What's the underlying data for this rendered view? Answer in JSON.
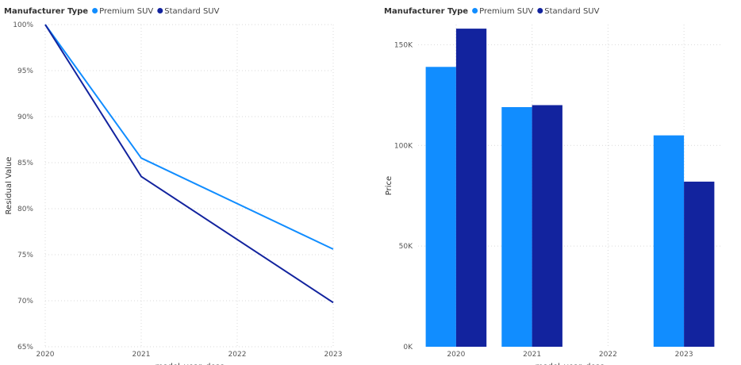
{
  "chart_data": [
    {
      "type": "line",
      "legend_title": "Manufacturer Type",
      "categories": [
        "2020",
        "2021",
        "2022",
        "2023"
      ],
      "series": [
        {
          "name": "Premium SUV",
          "color": "#118DFF",
          "x": [
            "2020",
            "2021",
            "2023"
          ],
          "values": [
            100,
            85.5,
            75.6
          ]
        },
        {
          "name": "Standard SUV",
          "color": "#12239E",
          "x": [
            "2020",
            "2021",
            "2023"
          ],
          "values": [
            100,
            83.5,
            69.8
          ]
        }
      ],
      "ylabel": "Residual Value",
      "xlabel": "model_year_desc",
      "ylim": [
        65,
        100
      ],
      "yticks": [
        100,
        95,
        90,
        85,
        80,
        75,
        70,
        65
      ],
      "ytick_labels": [
        "100%",
        "95%",
        "90%",
        "85%",
        "80%",
        "75%",
        "70%",
        "65%"
      ],
      "grid": true
    },
    {
      "type": "bar",
      "legend_title": "Manufacturer Type",
      "categories": [
        "2020",
        "2021",
        "2022",
        "2023"
      ],
      "series": [
        {
          "name": "Premium SUV",
          "color": "#118DFF",
          "values": [
            139000,
            119000,
            null,
            105000
          ]
        },
        {
          "name": "Standard SUV",
          "color": "#12239E",
          "values": [
            158000,
            120000,
            null,
            82000
          ]
        }
      ],
      "ylabel": "Price",
      "xlabel": "model_year_desc",
      "ylim": [
        0,
        160000
      ],
      "yticks": [
        150000,
        100000,
        50000,
        0
      ],
      "ytick_labels": [
        "150K",
        "100K",
        "50K",
        "0K"
      ],
      "grid": true
    }
  ]
}
